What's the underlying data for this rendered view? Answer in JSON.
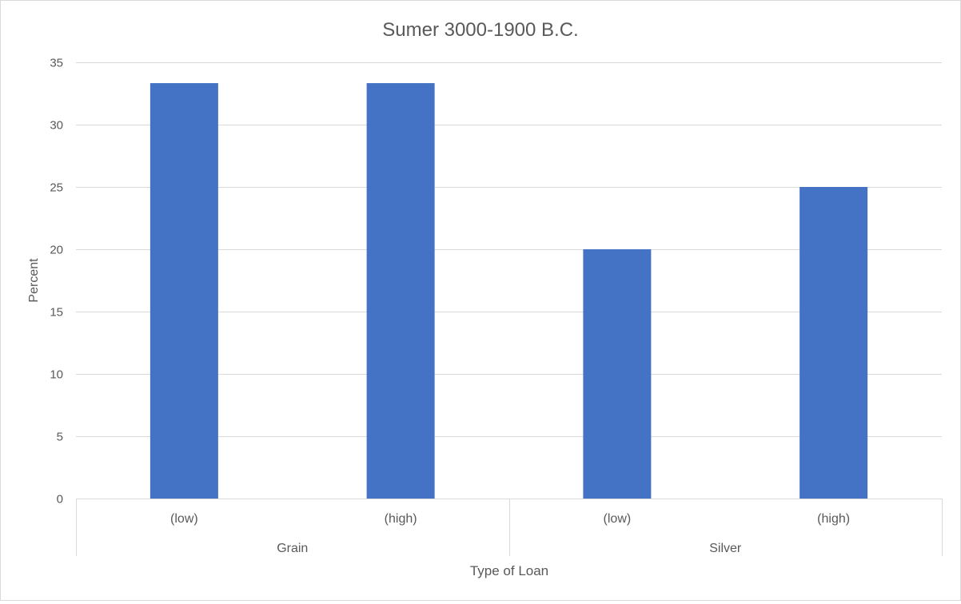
{
  "chart_data": {
    "type": "bar",
    "title": "Sumer 3000-1900 B.C.",
    "xlabel": "Type of Loan",
    "ylabel": "Percent",
    "groups": [
      {
        "label": "Grain",
        "categories": [
          "(low)",
          "(high)"
        ]
      },
      {
        "label": "Silver",
        "categories": [
          "(low)",
          "(high)"
        ]
      }
    ],
    "categories": [
      "(low)",
      "(high)",
      "(low)",
      "(high)"
    ],
    "values": [
      33.33,
      33.33,
      20,
      25
    ],
    "ylim": [
      0,
      35
    ],
    "yticks": [
      "0",
      "5",
      "10",
      "15",
      "20",
      "25",
      "30",
      "35"
    ],
    "grid": true,
    "legend": "none",
    "colors": {
      "bar": "#4472c4",
      "grid": "#d9d9d9",
      "text": "#595959",
      "title": "#595959",
      "border": "#d9d9d9"
    }
  }
}
